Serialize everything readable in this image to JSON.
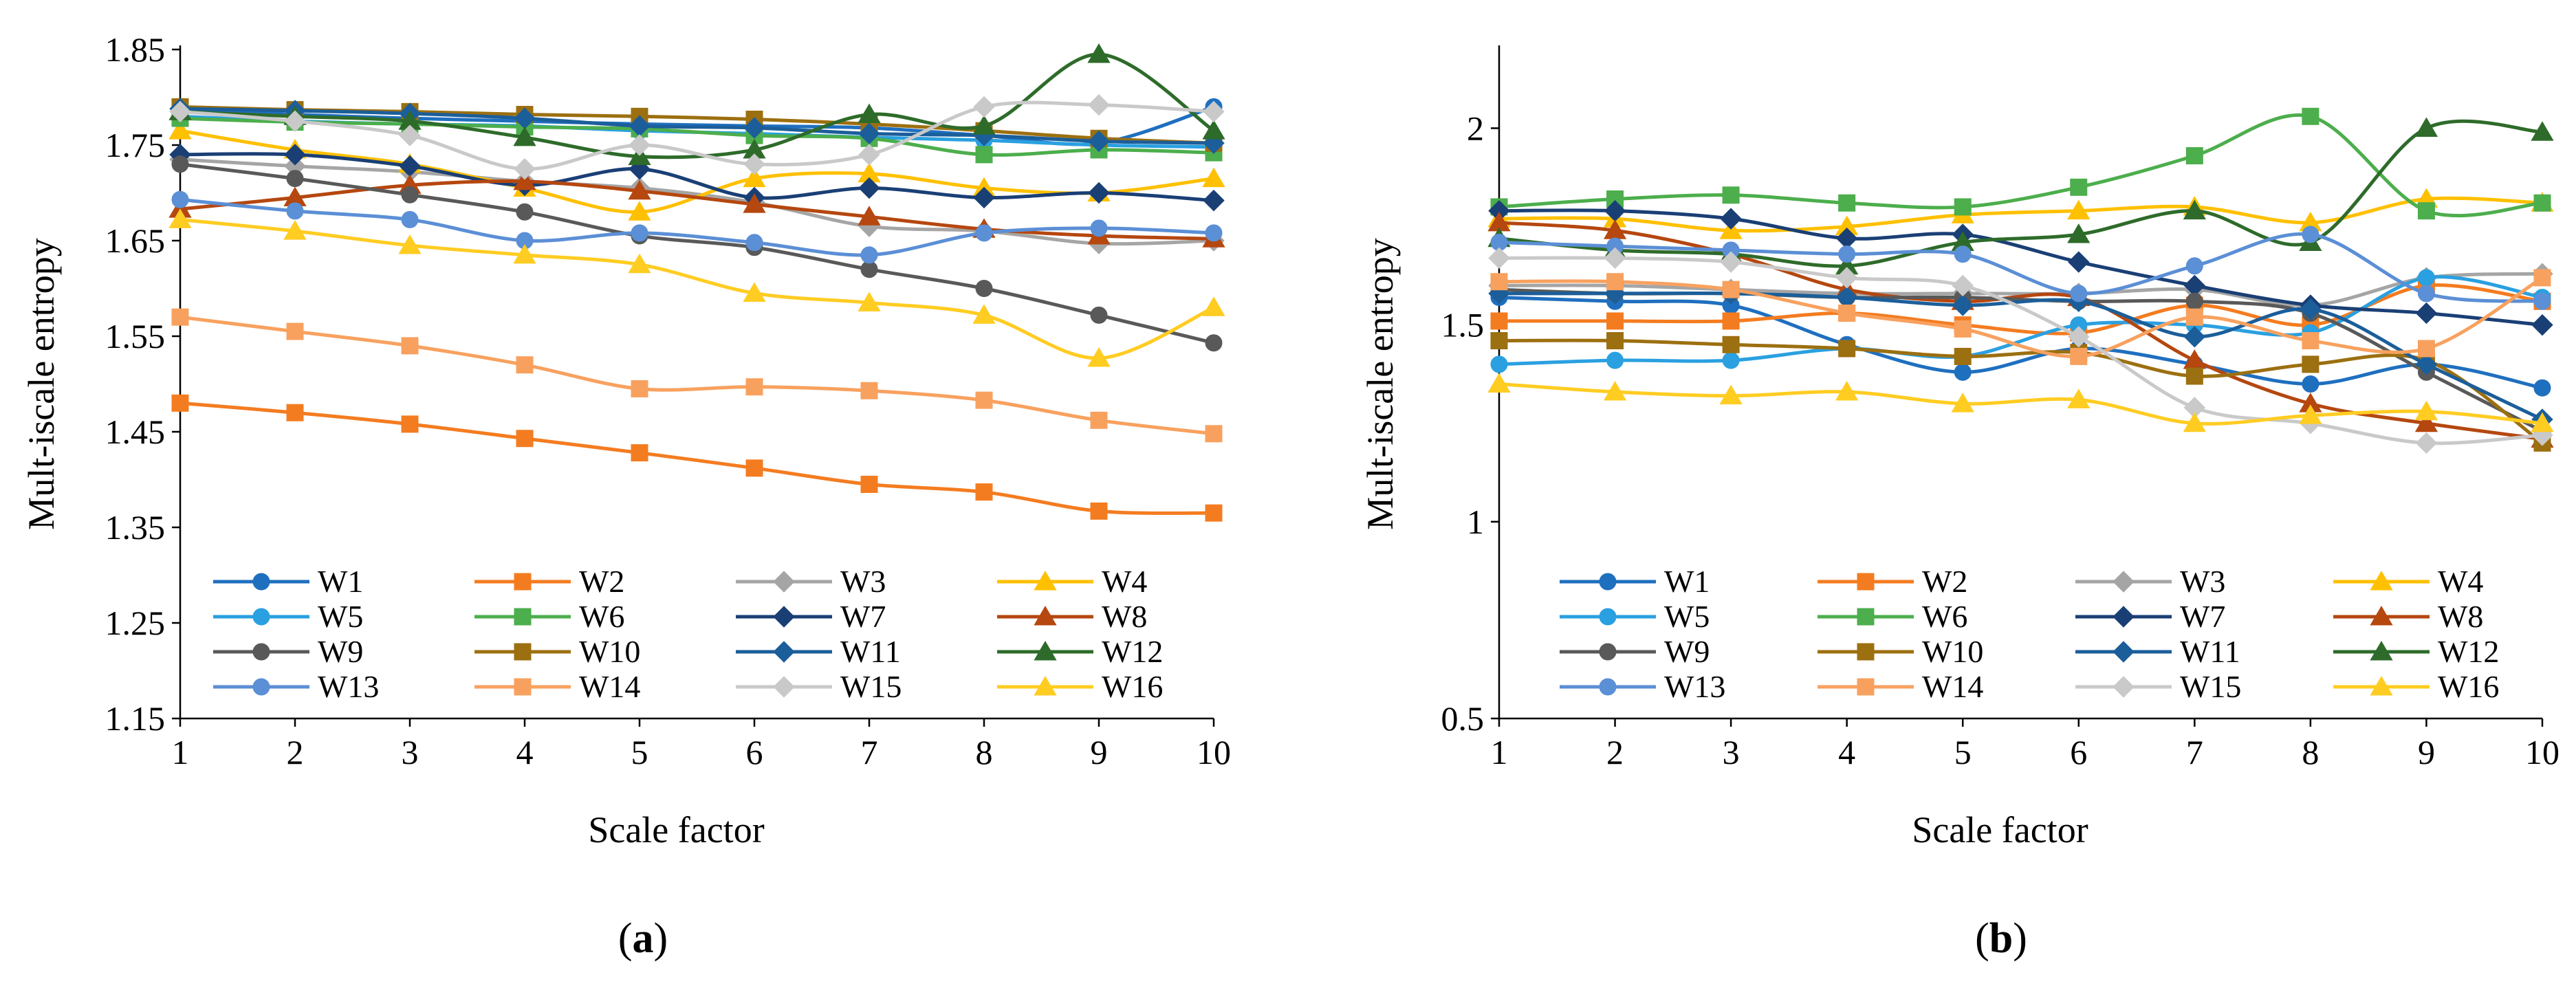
{
  "figure": {
    "caption": ""
  },
  "chart_data": [
    {
      "type": "line",
      "panel_label": "(a)",
      "panel_letter": "a",
      "xlabel": "Scale factor",
      "ylabel": "Mult-iscale entropy",
      "xlim": [
        1,
        10
      ],
      "ylim": [
        1.15,
        1.85
      ],
      "x": [
        1,
        2,
        3,
        4,
        5,
        6,
        7,
        8,
        9,
        10
      ],
      "x_tick_labels": [
        "1",
        "2",
        "3",
        "4",
        "5",
        "6",
        "7",
        "8",
        "9",
        "10"
      ],
      "yticks": [
        1.15,
        1.25,
        1.35,
        1.45,
        1.55,
        1.65,
        1.75,
        1.85
      ],
      "y_tick_labels": [
        "1.15",
        "1.25",
        "1.35",
        "1.45",
        "1.55",
        "1.65",
        "1.75",
        "1.85"
      ],
      "grid": false,
      "legend_position": "bottom, inside plot, 4 columns",
      "series": [
        {
          "name": "W1",
          "color": "#1f6fbf",
          "marker": "circle",
          "values": [
            1.788,
            1.782,
            1.778,
            1.775,
            1.772,
            1.77,
            1.768,
            1.76,
            1.752,
            1.79
          ]
        },
        {
          "name": "W2",
          "color": "#f47c20",
          "marker": "square",
          "values": [
            1.48,
            1.47,
            1.458,
            1.443,
            1.428,
            1.412,
            1.395,
            1.387,
            1.367,
            1.365
          ]
        },
        {
          "name": "W3",
          "color": "#a5a5a5",
          "marker": "diamond",
          "values": [
            1.735,
            1.728,
            1.722,
            1.712,
            1.705,
            1.69,
            1.665,
            1.66,
            1.647,
            1.65
          ]
        },
        {
          "name": "W4",
          "color": "#ffc000",
          "marker": "triangle",
          "values": [
            1.765,
            1.745,
            1.73,
            1.705,
            1.68,
            1.715,
            1.72,
            1.705,
            1.7,
            1.715
          ]
        },
        {
          "name": "W5",
          "color": "#2aa0e0",
          "marker": "circle",
          "values": [
            1.78,
            1.775,
            1.772,
            1.77,
            1.765,
            1.762,
            1.758,
            1.755,
            1.75,
            1.748
          ]
        },
        {
          "name": "W6",
          "color": "#4cae4c",
          "marker": "square",
          "values": [
            1.778,
            1.774,
            1.772,
            1.769,
            1.767,
            1.76,
            1.757,
            1.74,
            1.745,
            1.742
          ]
        },
        {
          "name": "W7",
          "color": "#1a3f75",
          "marker": "diamond",
          "values": [
            1.74,
            1.74,
            1.728,
            1.708,
            1.725,
            1.695,
            1.705,
            1.695,
            1.7,
            1.692
          ]
        },
        {
          "name": "W8",
          "color": "#b5470f",
          "marker": "triangle",
          "values": [
            1.683,
            1.695,
            1.708,
            1.712,
            1.702,
            1.688,
            1.675,
            1.662,
            1.655,
            1.652
          ]
        },
        {
          "name": "W9",
          "color": "#595959",
          "marker": "circle",
          "values": [
            1.73,
            1.715,
            1.698,
            1.68,
            1.655,
            1.643,
            1.62,
            1.6,
            1.572,
            1.543
          ]
        },
        {
          "name": "W10",
          "color": "#9c6f10",
          "marker": "square",
          "values": [
            1.79,
            1.787,
            1.785,
            1.782,
            1.78,
            1.777,
            1.772,
            1.765,
            1.757,
            1.752
          ]
        },
        {
          "name": "W11",
          "color": "#1b5e9a",
          "marker": "diamond",
          "values": [
            1.788,
            1.786,
            1.783,
            1.778,
            1.77,
            1.768,
            1.762,
            1.76,
            1.754,
            1.752
          ]
        },
        {
          "name": "W12",
          "color": "#2e6b2a",
          "marker": "triangle",
          "values": [
            1.785,
            1.78,
            1.775,
            1.758,
            1.738,
            1.745,
            1.782,
            1.77,
            1.845,
            1.765
          ]
        },
        {
          "name": "W13",
          "color": "#5b8fd6",
          "marker": "circle",
          "values": [
            1.693,
            1.681,
            1.672,
            1.65,
            1.658,
            1.648,
            1.635,
            1.658,
            1.663,
            1.658
          ]
        },
        {
          "name": "W14",
          "color": "#f8a15f",
          "marker": "square",
          "values": [
            1.57,
            1.555,
            1.54,
            1.52,
            1.495,
            1.497,
            1.493,
            1.483,
            1.462,
            1.448
          ]
        },
        {
          "name": "W15",
          "color": "#c9c9c9",
          "marker": "diamond",
          "values": [
            1.785,
            1.775,
            1.76,
            1.725,
            1.75,
            1.73,
            1.74,
            1.79,
            1.792,
            1.785
          ]
        },
        {
          "name": "W16",
          "color": "#ffcc22",
          "marker": "triangle",
          "values": [
            1.672,
            1.66,
            1.645,
            1.635,
            1.625,
            1.595,
            1.585,
            1.572,
            1.527,
            1.58
          ]
        }
      ]
    },
    {
      "type": "line",
      "panel_label": "(b)",
      "panel_letter": "b",
      "xlabel": "Scale factor",
      "ylabel": "Mult-iscale entropy",
      "xlim": [
        1,
        10
      ],
      "ylim": [
        0.5,
        2.2
      ],
      "x": [
        1,
        2,
        3,
        4,
        5,
        6,
        7,
        8,
        9,
        10
      ],
      "x_tick_labels": [
        "1",
        "2",
        "3",
        "4",
        "5",
        "6",
        "7",
        "8",
        "9",
        "10"
      ],
      "yticks": [
        0.5,
        1,
        1.5,
        2
      ],
      "y_tick_labels": [
        "0.5",
        "1",
        "1.5",
        "2"
      ],
      "grid": false,
      "legend_position": "bottom, inside plot, 4 columns",
      "series": [
        {
          "name": "W1",
          "color": "#1f6fbf",
          "marker": "circle",
          "values": [
            1.57,
            1.56,
            1.55,
            1.45,
            1.38,
            1.44,
            1.4,
            1.35,
            1.4,
            1.34
          ]
        },
        {
          "name": "W2",
          "color": "#f47c20",
          "marker": "square",
          "values": [
            1.51,
            1.51,
            1.51,
            1.53,
            1.5,
            1.48,
            1.55,
            1.5,
            1.6,
            1.56
          ]
        },
        {
          "name": "W3",
          "color": "#a5a5a5",
          "marker": "diamond",
          "values": [
            1.6,
            1.6,
            1.59,
            1.58,
            1.58,
            1.58,
            1.59,
            1.55,
            1.62,
            1.63
          ]
        },
        {
          "name": "W4",
          "color": "#ffc000",
          "marker": "triangle",
          "values": [
            1.77,
            1.77,
            1.74,
            1.75,
            1.78,
            1.79,
            1.8,
            1.76,
            1.82,
            1.81
          ]
        },
        {
          "name": "W5",
          "color": "#2aa0e0",
          "marker": "circle",
          "values": [
            1.4,
            1.41,
            1.41,
            1.44,
            1.42,
            1.5,
            1.5,
            1.48,
            1.62,
            1.57
          ]
        },
        {
          "name": "W6",
          "color": "#4cae4c",
          "marker": "square",
          "values": [
            1.8,
            1.82,
            1.83,
            1.81,
            1.8,
            1.85,
            1.93,
            2.03,
            1.79,
            1.81
          ]
        },
        {
          "name": "W7",
          "color": "#1a3f75",
          "marker": "diamond",
          "values": [
            1.79,
            1.79,
            1.77,
            1.72,
            1.73,
            1.66,
            1.6,
            1.55,
            1.53,
            1.5
          ]
        },
        {
          "name": "W8",
          "color": "#b5470f",
          "marker": "triangle",
          "values": [
            1.76,
            1.74,
            1.68,
            1.59,
            1.56,
            1.57,
            1.41,
            1.3,
            1.25,
            1.21
          ]
        },
        {
          "name": "W9",
          "color": "#595959",
          "marker": "circle",
          "values": [
            1.59,
            1.58,
            1.58,
            1.57,
            1.57,
            1.56,
            1.56,
            1.53,
            1.38,
            1.23
          ]
        },
        {
          "name": "W10",
          "color": "#9c6f10",
          "marker": "square",
          "values": [
            1.46,
            1.46,
            1.45,
            1.44,
            1.42,
            1.43,
            1.37,
            1.4,
            1.41,
            1.2
          ]
        },
        {
          "name": "W11",
          "color": "#1b5e9a",
          "marker": "diamond",
          "values": [
            1.58,
            1.58,
            1.58,
            1.57,
            1.55,
            1.56,
            1.47,
            1.54,
            1.4,
            1.26
          ]
        },
        {
          "name": "W12",
          "color": "#2e6b2a",
          "marker": "triangle",
          "values": [
            1.72,
            1.69,
            1.68,
            1.65,
            1.71,
            1.73,
            1.79,
            1.71,
            2.0,
            1.99
          ]
        },
        {
          "name": "W13",
          "color": "#5b8fd6",
          "marker": "circle",
          "values": [
            1.71,
            1.7,
            1.69,
            1.68,
            1.68,
            1.58,
            1.65,
            1.73,
            1.58,
            1.56
          ]
        },
        {
          "name": "W14",
          "color": "#f8a15f",
          "marker": "square",
          "values": [
            1.61,
            1.61,
            1.59,
            1.53,
            1.49,
            1.42,
            1.52,
            1.46,
            1.44,
            1.62
          ]
        },
        {
          "name": "W15",
          "color": "#c9c9c9",
          "marker": "diamond",
          "values": [
            1.67,
            1.67,
            1.66,
            1.62,
            1.6,
            1.47,
            1.29,
            1.25,
            1.2,
            1.22
          ]
        },
        {
          "name": "W16",
          "color": "#ffcc22",
          "marker": "triangle",
          "values": [
            1.35,
            1.33,
            1.32,
            1.33,
            1.3,
            1.31,
            1.25,
            1.27,
            1.28,
            1.25
          ]
        }
      ]
    }
  ]
}
